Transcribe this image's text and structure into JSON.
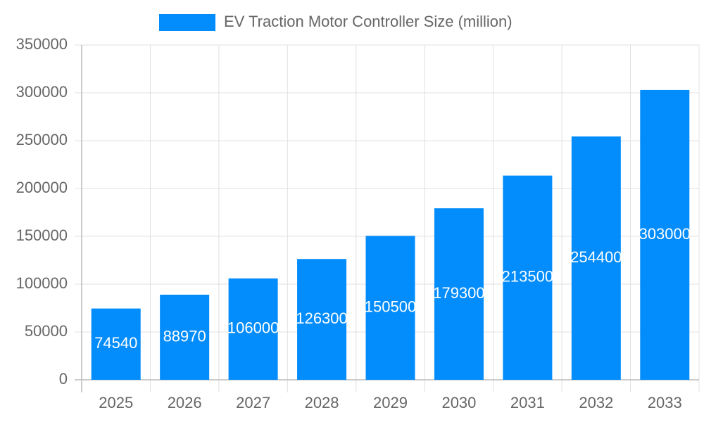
{
  "chart_data": {
    "type": "bar",
    "categories": [
      "2025",
      "2026",
      "2027",
      "2028",
      "2029",
      "2030",
      "2031",
      "2032",
      "2033"
    ],
    "series": [
      {
        "name": "EV Traction Motor Controller Size (million)",
        "color": "#038cfb",
        "values": [
          74540,
          88970,
          106000,
          126300,
          150500,
          179300,
          213500,
          254400,
          303000
        ]
      }
    ],
    "ylim": [
      0,
      350000
    ],
    "yticks": [
      0,
      50000,
      100000,
      150000,
      200000,
      250000,
      300000,
      350000
    ],
    "grid": true,
    "legend": "top",
    "data_labels": true
  }
}
